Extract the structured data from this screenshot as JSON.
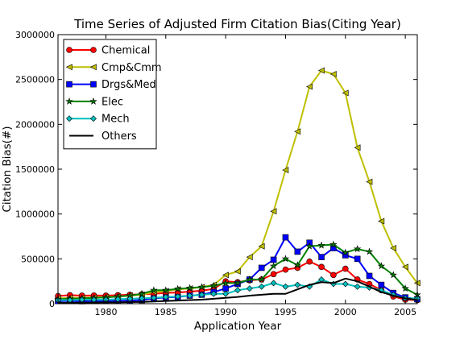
{
  "chart_data": {
    "type": "line",
    "title": "Time Series of Adjusted Firm Citation Bias(Citing Year)",
    "xlabel": "Application Year",
    "ylabel": "Citation Bias(#)",
    "xlim": [
      1976,
      2006
    ],
    "ylim": [
      0,
      3000000
    ],
    "xticks": [
      1980,
      1985,
      1990,
      1995,
      2000,
      2005
    ],
    "xtick_labels": [
      "1980",
      "1985",
      "1990",
      "1995",
      "2000",
      "2005"
    ],
    "yticks": [
      0,
      500000,
      1000000,
      1500000,
      2000000,
      2500000,
      3000000
    ],
    "ytick_labels": [
      "0",
      "500000",
      "1000000",
      "1500000",
      "2000000",
      "2500000",
      "3000000"
    ],
    "grid": false,
    "legend_position": "top-left",
    "x": [
      1976,
      1977,
      1978,
      1979,
      1980,
      1981,
      1982,
      1983,
      1984,
      1985,
      1986,
      1987,
      1988,
      1989,
      1990,
      1991,
      1992,
      1993,
      1994,
      1995,
      1996,
      1997,
      1998,
      1999,
      2000,
      2001,
      2002,
      2003,
      2004,
      2005,
      2006
    ],
    "series": [
      {
        "name": "Chemical",
        "color": "#ff0000",
        "marker": "circle",
        "values": [
          85000,
          95000,
          90000,
          92000,
          90000,
          95000,
          100000,
          105000,
          110000,
          120000,
          125000,
          135000,
          145000,
          165000,
          250000,
          240000,
          260000,
          270000,
          330000,
          380000,
          400000,
          470000,
          410000,
          320000,
          390000,
          270000,
          220000,
          150000,
          80000,
          45000,
          40000
        ]
      },
      {
        "name": "Cmp&Cmm",
        "color": "#bfbf00",
        "marker": "triangle-left",
        "values": [
          60000,
          65000,
          65000,
          70000,
          75000,
          80000,
          90000,
          100000,
          130000,
          140000,
          160000,
          170000,
          185000,
          210000,
          320000,
          360000,
          520000,
          640000,
          1030000,
          1490000,
          1920000,
          2420000,
          2600000,
          2560000,
          2350000,
          1740000,
          1360000,
          920000,
          620000,
          410000,
          230000
        ]
      },
      {
        "name": "Drgs&Med",
        "color": "#0000ff",
        "marker": "square",
        "values": [
          30000,
          30000,
          28000,
          30000,
          30000,
          32000,
          35000,
          40000,
          60000,
          70000,
          75000,
          90000,
          100000,
          130000,
          170000,
          220000,
          270000,
          400000,
          490000,
          740000,
          580000,
          680000,
          520000,
          620000,
          540000,
          500000,
          310000,
          210000,
          120000,
          70000,
          50000
        ]
      },
      {
        "name": "Elec",
        "color": "#007f00",
        "marker": "star",
        "values": [
          50000,
          55000,
          60000,
          65000,
          70000,
          80000,
          90000,
          110000,
          150000,
          150000,
          165000,
          175000,
          185000,
          200000,
          230000,
          230000,
          270000,
          270000,
          420000,
          500000,
          430000,
          640000,
          650000,
          660000,
          570000,
          610000,
          580000,
          420000,
          320000,
          170000,
          100000
        ]
      },
      {
        "name": "Mech",
        "color": "#00bfbf",
        "marker": "diamond",
        "values": [
          40000,
          40000,
          45000,
          45000,
          45000,
          50000,
          55000,
          60000,
          65000,
          75000,
          80000,
          90000,
          100000,
          110000,
          110000,
          150000,
          170000,
          190000,
          230000,
          190000,
          210000,
          190000,
          270000,
          220000,
          220000,
          190000,
          180000,
          150000,
          100000,
          60000,
          60000
        ]
      },
      {
        "name": "Others",
        "color": "#000000",
        "marker": "none",
        "values": [
          10000,
          10000,
          12000,
          12000,
          15000,
          15000,
          18000,
          20000,
          25000,
          30000,
          35000,
          40000,
          45000,
          55000,
          65000,
          75000,
          90000,
          100000,
          110000,
          110000,
          160000,
          210000,
          240000,
          230000,
          280000,
          250000,
          190000,
          130000,
          90000,
          60000,
          40000
        ]
      }
    ]
  }
}
